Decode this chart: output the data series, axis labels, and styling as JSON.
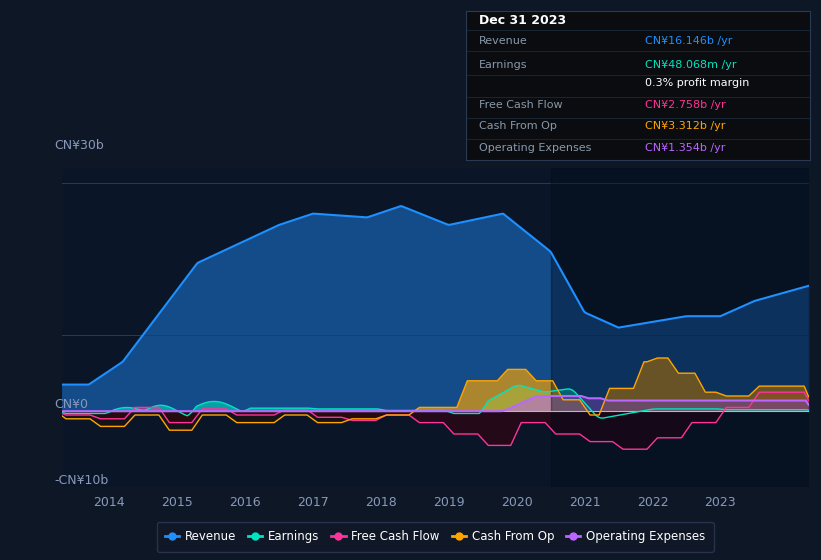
{
  "bg_color": "#0e1726",
  "plot_bg_color": "#0a1628",
  "title": "Dec 31 2023",
  "y_label_top": "CN¥30b",
  "y_label_mid": "CN¥0",
  "y_label_bot": "-CN¥10b",
  "x_ticks": [
    "2014",
    "2015",
    "2016",
    "2017",
    "2018",
    "2019",
    "2020",
    "2021",
    "2022",
    "2023"
  ],
  "colors": {
    "revenue": "#1e90ff",
    "earnings": "#00e5c0",
    "free_cash_flow": "#ff3399",
    "cash_from_op": "#ffa500",
    "operating_expenses": "#bb66ff"
  },
  "tooltip": {
    "date": "Dec 31 2023",
    "revenue_label": "Revenue",
    "revenue_value": "CN¥16.146b /yr",
    "revenue_color": "#1e90ff",
    "earnings_label": "Earnings",
    "earnings_value": "CN¥48.068m /yr",
    "earnings_color": "#00e5c0",
    "profit_margin": "0.3% profit margin",
    "fcf_label": "Free Cash Flow",
    "fcf_value": "CN¥2.758b /yr",
    "fcf_color": "#ff3399",
    "cfop_label": "Cash From Op",
    "cfop_value": "CN¥3.312b /yr",
    "cfop_color": "#ffa500",
    "opex_label": "Operating Expenses",
    "opex_value": "CN¥1.354b /yr",
    "opex_color": "#bb66ff"
  },
  "legend": [
    {
      "label": "Revenue",
      "color": "#1e90ff"
    },
    {
      "label": "Earnings",
      "color": "#00e5c0"
    },
    {
      "label": "Free Cash Flow",
      "color": "#ff3399"
    },
    {
      "label": "Cash From Op",
      "color": "#ffa500"
    },
    {
      "label": "Operating Expenses",
      "color": "#bb66ff"
    }
  ],
  "ylim": [
    -10,
    32
  ],
  "xlim": [
    2013.3,
    2024.3
  ]
}
